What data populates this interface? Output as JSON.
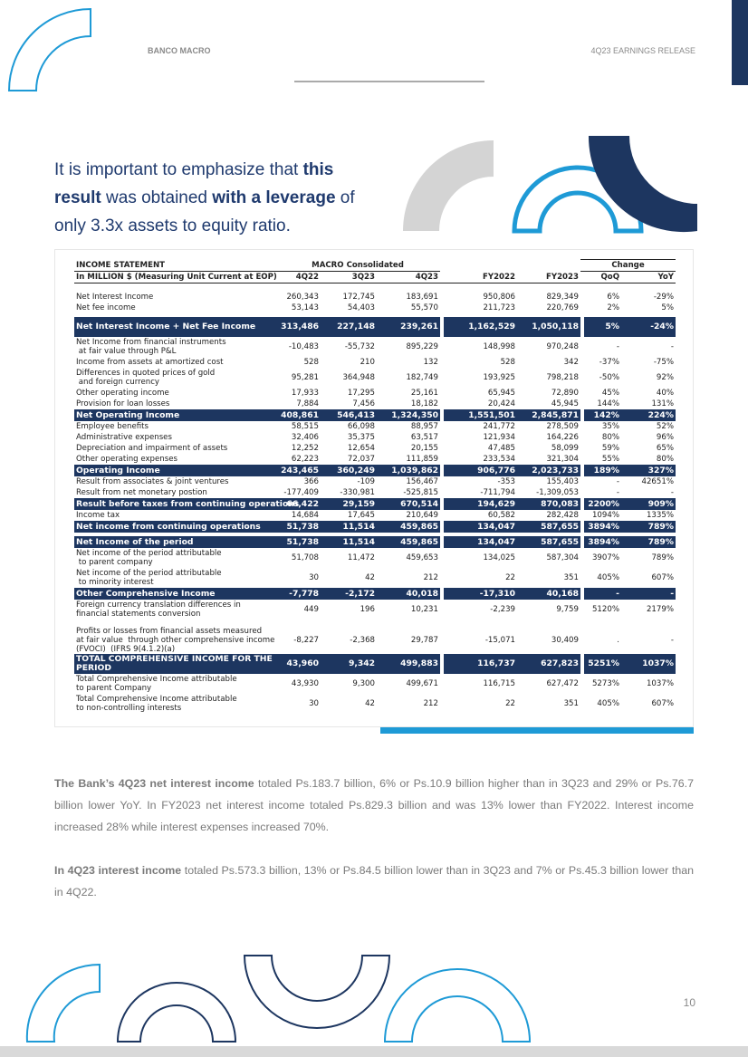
{
  "header": {
    "left": "BANCO MACRO",
    "right": "4Q23 EARNINGS RELEASE"
  },
  "intro": [
    {
      "text": "It is important to emphasize that ",
      "bold": false
    },
    {
      "text": "this result",
      "bold": true
    },
    {
      "text": " was obtained ",
      "bold": false
    },
    {
      "text": "with a leverage",
      "bold": true
    },
    {
      "text": " of only 3.3x assets to equity ratio.",
      "bold": false
    }
  ],
  "table": {
    "title": "INCOME STATEMENT",
    "group": "MACRO Consolidated",
    "change": "Change",
    "subtitle": "In MILLION $ (Measuring Unit Current at EOP)",
    "columns": [
      "4Q22",
      "3Q23",
      "4Q23",
      "FY2022",
      "FY2023",
      "QoQ",
      "YoY"
    ],
    "rows": [
      {
        "label": "Net Interest Income",
        "values": [
          "260,343",
          "172,745",
          "183,691",
          "950,806",
          "829,349",
          "6%",
          "-29%"
        ],
        "highlight": false
      },
      {
        "label": "Net fee income",
        "values": [
          "53,143",
          "54,403",
          "55,570",
          "211,723",
          "220,769",
          "2%",
          "5%"
        ],
        "highlight": false
      },
      {
        "label": "Net Interest Income + Net Fee Income",
        "values": [
          "313,486",
          "227,148",
          "239,261",
          "1,162,529",
          "1,050,118",
          "5%",
          "-24%"
        ],
        "highlight": true
      },
      {
        "label": "Net Income from financial instruments\n at fair value through P&L",
        "values": [
          "-10,483",
          "-55,732",
          "895,229",
          "148,998",
          "970,248",
          "-",
          "-"
        ],
        "highlight": false
      },
      {
        "label": "Income from assets at amortized cost",
        "values": [
          "528",
          "210",
          "132",
          "528",
          "342",
          "-37%",
          "-75%"
        ],
        "highlight": false
      },
      {
        "label": "Differences in quoted prices of gold\n and foreign currency",
        "values": [
          "95,281",
          "364,948",
          "182,749",
          "193,925",
          "798,218",
          "-50%",
          "92%"
        ],
        "highlight": false
      },
      {
        "label": "Other operating income",
        "values": [
          "17,933",
          "17,295",
          "25,161",
          "65,945",
          "72,890",
          "45%",
          "40%"
        ],
        "highlight": false
      },
      {
        "label": "Provision for loan losses",
        "values": [
          "7,884",
          "7,456",
          "18,182",
          "20,424",
          "45,945",
          "144%",
          "131%"
        ],
        "highlight": false
      },
      {
        "label": "Net Operating Income",
        "values": [
          "408,861",
          "546,413",
          "1,324,350",
          "1,551,501",
          "2,845,871",
          "142%",
          "224%"
        ],
        "highlight": true
      },
      {
        "label": "Employee benefits",
        "values": [
          "58,515",
          "66,098",
          "88,957",
          "241,772",
          "278,509",
          "35%",
          "52%"
        ],
        "highlight": false
      },
      {
        "label": "Administrative expenses",
        "values": [
          "32,406",
          "35,375",
          "63,517",
          "121,934",
          "164,226",
          "80%",
          "96%"
        ],
        "highlight": false
      },
      {
        "label": "Depreciation and impairment of assets",
        "values": [
          "12,252",
          "12,654",
          "20,155",
          "47,485",
          "58,099",
          "59%",
          "65%"
        ],
        "highlight": false
      },
      {
        "label": "Other operating expenses",
        "values": [
          "62,223",
          "72,037",
          "111,859",
          "233,534",
          "321,304",
          "55%",
          "80%"
        ],
        "highlight": false
      },
      {
        "label": "Operating Income",
        "values": [
          "243,465",
          "360,249",
          "1,039,862",
          "906,776",
          "2,023,733",
          "189%",
          "327%"
        ],
        "highlight": true
      },
      {
        "label": "Result from associates & joint ventures",
        "values": [
          "366",
          "-109",
          "156,467",
          "-353",
          "155,403",
          "-",
          "42651%"
        ],
        "highlight": false
      },
      {
        "label": "Result from net monetary postion",
        "values": [
          "-177,409",
          "-330,981",
          "-525,815",
          "-711,794",
          "-1,309,053",
          "-",
          "-"
        ],
        "highlight": false
      },
      {
        "label": "Result before taxes from continuing operations",
        "values": [
          "66,422",
          "29,159",
          "670,514",
          "194,629",
          "870,083",
          "2200%",
          "909%"
        ],
        "highlight": true
      },
      {
        "label": "Income tax",
        "values": [
          "14,684",
          "17,645",
          "210,649",
          "60,582",
          "282,428",
          "1094%",
          "1335%"
        ],
        "highlight": false
      },
      {
        "label": "Net income from continuing operations",
        "values": [
          "51,738",
          "11,514",
          "459,865",
          "134,047",
          "587,655",
          "3894%",
          "789%"
        ],
        "highlight": true
      },
      {
        "label": "Net Income of the period",
        "values": [
          "51,738",
          "11,514",
          "459,865",
          "134,047",
          "587,655",
          "3894%",
          "789%"
        ],
        "highlight": true
      },
      {
        "label": "Net income of the period attributable\n to parent company",
        "values": [
          "51,708",
          "11,472",
          "459,653",
          "134,025",
          "587,304",
          "3907%",
          "789%"
        ],
        "highlight": false
      },
      {
        "label": "Net income of the period attributable\n to minority interest",
        "values": [
          "30",
          "42",
          "212",
          "22",
          "351",
          "405%",
          "607%"
        ],
        "highlight": false
      },
      {
        "label": "Other Comprehensive Income",
        "values": [
          "-7,778",
          "-2,172",
          "40,018",
          "-17,310",
          "40,168",
          "-",
          "-"
        ],
        "highlight": true
      },
      {
        "label": "Foreign currency translation differences in\nfinancial statements conversion",
        "values": [
          "449",
          "196",
          "10,231",
          "-2,239",
          "9,759",
          "5120%",
          "2179%"
        ],
        "highlight": false
      },
      {
        "label": "Profits or losses from financial assets measured\nat fair value  through other comprehensive income\n(FVOCI)  (IFRS 9(4.1.2)(a)",
        "values": [
          "-8,227",
          "-2,368",
          "29,787",
          "-15,071",
          "30,409",
          ".",
          "-"
        ],
        "highlight": false
      },
      {
        "label": "TOTAL COMPREHENSIVE INCOME FOR THE\nPERIOD",
        "values": [
          "43,960",
          "9,342",
          "499,883",
          "116,737",
          "627,823",
          "5251%",
          "1037%"
        ],
        "highlight": true
      },
      {
        "label": "Total Comprehensive Income attributable\nto parent Company",
        "values": [
          "43,930",
          "9,300",
          "499,671",
          "116,715",
          "627,472",
          "5273%",
          "1037%"
        ],
        "highlight": false
      },
      {
        "label": "Total Comprehensive Income attributable\nto non-controlling interests",
        "values": [
          "30",
          "42",
          "212",
          "22",
          "351",
          "405%",
          "607%"
        ],
        "highlight": false
      }
    ]
  },
  "paragraphs": [
    [
      {
        "text": "The Bank’s 4Q23 net interest income",
        "bold": true
      },
      {
        "text": " totaled Ps.183.7 billion, 6% or Ps.10.9 billion higher than in 3Q23 and 29% or Ps.76.7 billion lower YoY. In FY2023 net interest income totaled Ps.829.3 billion and was 13% lower than FY2022. Interest income increased 28% while interest expenses increased 70%.",
        "bold": false
      }
    ],
    [
      {
        "text": "In 4Q23 interest income",
        "bold": true
      },
      {
        "text": " totaled Ps.573.3 billion, 13% or Ps.84.5 billion lower than in 3Q23 and 7% or Ps.45.3 billion lower than in 4Q22.",
        "bold": false
      }
    ]
  ],
  "page_number": "10"
}
